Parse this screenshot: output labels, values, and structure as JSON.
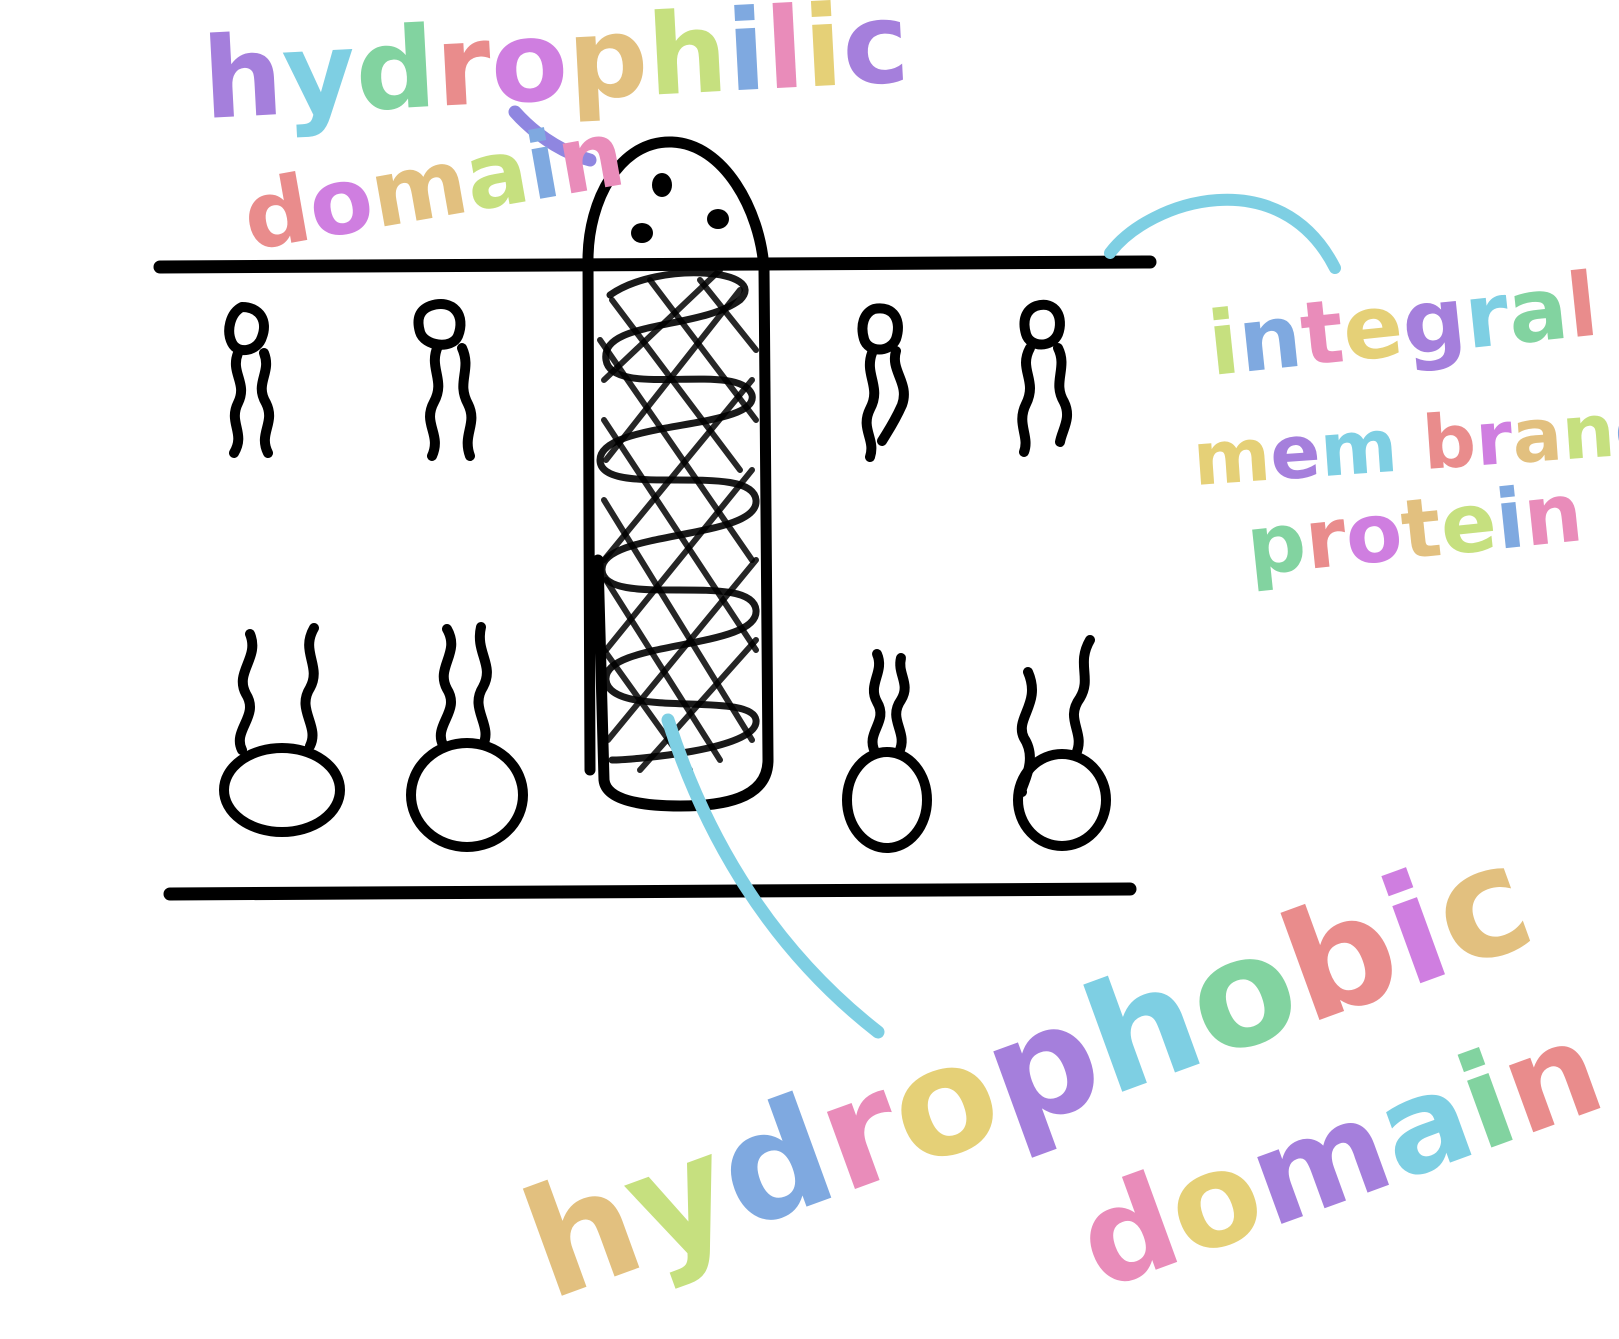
{
  "labels": {
    "hydrophilic_line1": "hydrophilic",
    "hydrophilic_line2": "domain",
    "integral_line1": "integral",
    "integral_line2": "mem brane",
    "integral_line3": "protein",
    "hydrophobic_line1": "hydrophobic",
    "hydrophobic_line2": "domain"
  },
  "colors": {
    "ink": "#000000",
    "leader": "#7ecfe3",
    "rainbow": [
      "#a57fdc",
      "#7ecfe3",
      "#82d3a0",
      "#e98c8c",
      "#cf7ee0",
      "#e2c07f",
      "#c6e07f",
      "#7fa9e0",
      "#e98cba",
      "#e5d077"
    ]
  },
  "icons": {
    "phospholipid": "phospholipid-icon",
    "protein": "integral-protein-icon"
  }
}
